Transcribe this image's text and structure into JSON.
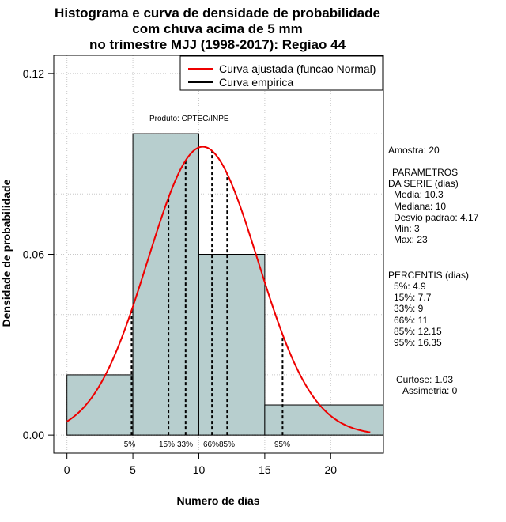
{
  "chart_data": {
    "type": "bar",
    "title": [
      "Histograma e curva de densidade de probabilidade",
      "com chuva acima de 5 mm",
      "no trimestre MJJ (1998-2017): Regiao 44"
    ],
    "xlabel": "Numero de dias",
    "ylabel": "Densidade de probabilidade",
    "xlim": [
      -1,
      24
    ],
    "ylim": [
      -0.006,
      0.126
    ],
    "x_ticks": [
      0,
      5,
      10,
      15,
      20
    ],
    "y_ticks": [
      0.0,
      0.06,
      0.12
    ],
    "y_tick_labels": [
      "0.00",
      "0.06",
      "0.12"
    ],
    "grid": true,
    "histogram": [
      {
        "x0": 0,
        "x1": 5,
        "density": 0.02
      },
      {
        "x0": 5,
        "x1": 10,
        "density": 0.1
      },
      {
        "x0": 10,
        "x1": 15,
        "density": 0.06
      },
      {
        "x0": 15,
        "x1": 24,
        "density": 0.01
      }
    ],
    "normal_fit": {
      "mean": 10.3,
      "sd": 4.17,
      "x_from": 0,
      "x_to": 23
    },
    "percentiles": [
      {
        "label": "5%",
        "value": 4.9
      },
      {
        "label": "15%",
        "value": 7.7
      },
      {
        "label": "33%",
        "value": 9
      },
      {
        "label": "66%",
        "value": 11
      },
      {
        "label": "85%",
        "value": 12.15
      },
      {
        "label": "95%",
        "value": 16.35
      }
    ],
    "legend": [
      {
        "label": "Curva ajustada (funcao Normal)",
        "color": "#ee0000"
      },
      {
        "label": "Curva empirica",
        "color": "#000000"
      }
    ],
    "legend_position": "top-right",
    "annotation": "Produto: CPTEC/INPE",
    "colors": {
      "bar_fill": "#b7cece",
      "curve": "#ee0000",
      "frame": "#000000",
      "grid": "#c8c8c8"
    }
  },
  "side_panel": {
    "sample": "Amostra: 20",
    "params_title_1": "PARAMETROS",
    "params_title_2": "DA SERIE (dias)",
    "params": [
      "Media: 10.3",
      "Mediana: 10",
      "Desvio padrao: 4.17",
      "Min: 3",
      "Max: 23"
    ],
    "percentis_title": "PERCENTIS (dias)",
    "percentis": [
      "5%: 4.9",
      "15%: 7.7",
      "33%: 9",
      "66%: 11",
      "85%: 12.15",
      "95%: 16.35"
    ],
    "curtose": "Curtose: 1.03",
    "assimetria": "Assimetria: 0"
  }
}
